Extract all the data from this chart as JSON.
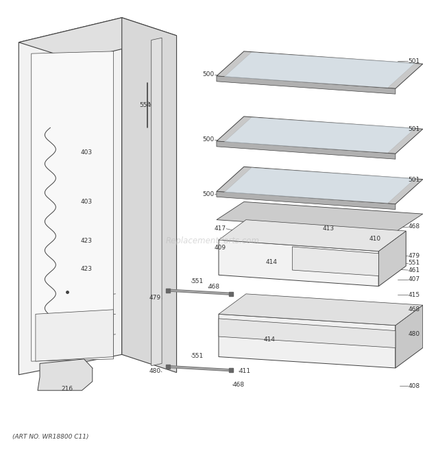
{
  "title": "",
  "footer": "(ART NO. WR18800 C11)",
  "background_color": "#ffffff",
  "line_color": "#404040",
  "text_color": "#333333",
  "watermark": "ReplacementParts.com",
  "fig_width": 6.2,
  "fig_height": 6.61,
  "dpi": 100
}
